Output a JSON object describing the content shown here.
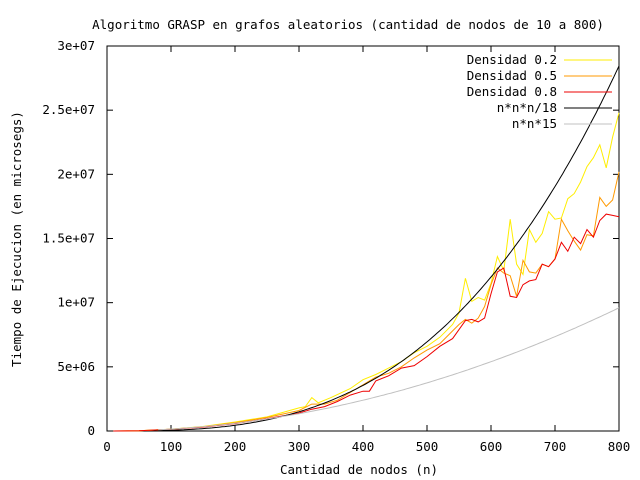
{
  "chart_data": {
    "type": "line",
    "title": "Algoritmo GRASP en grafos aleatorios (cantidad de nodos de 10 a 800)",
    "xlabel": "Cantidad de nodos (n)",
    "ylabel": "Tiempo de Ejecucion (en microsegs)",
    "xlim": [
      0,
      800
    ],
    "ylim": [
      0,
      30000000
    ],
    "xticks": [
      0,
      100,
      200,
      300,
      400,
      500,
      600,
      700,
      800
    ],
    "xtick_labels": [
      "0",
      "100",
      "200",
      "300",
      "400",
      "500",
      "600",
      "700",
      "800"
    ],
    "yticks": [
      0,
      5000000,
      10000000,
      15000000,
      20000000,
      25000000,
      30000000
    ],
    "ytick_labels": [
      "0",
      "5e+06",
      "1e+07",
      "1.5e+07",
      "2e+07",
      "2.5e+07",
      "3e+07"
    ],
    "grid": false,
    "legend_position": "top-right",
    "series": [
      {
        "name": "Densidad 0.2",
        "color": "#ffee00",
        "x": [
          10,
          50,
          100,
          150,
          200,
          250,
          300,
          310,
          320,
          330,
          350,
          380,
          400,
          420,
          440,
          460,
          480,
          500,
          520,
          540,
          550,
          560,
          570,
          580,
          590,
          600,
          610,
          620,
          630,
          640,
          650,
          660,
          670,
          680,
          690,
          700,
          710,
          720,
          730,
          740,
          750,
          760,
          770,
          780,
          790,
          800
        ],
        "y": [
          0,
          20000,
          150000,
          350000,
          700000,
          1100000,
          1800000,
          1900000,
          2600000,
          2200000,
          2600000,
          3300000,
          4000000,
          4400000,
          4900000,
          5400000,
          6100000,
          6600000,
          7300000,
          8300000,
          9200000,
          11900000,
          10100000,
          10400000,
          10200000,
          11500000,
          13600000,
          12500000,
          16500000,
          13000000,
          12200000,
          15700000,
          14700000,
          15400000,
          17100000,
          16500000,
          16600000,
          18100000,
          18500000,
          19400000,
          20600000,
          21300000,
          22300000,
          20500000,
          22900000,
          24800000
        ]
      },
      {
        "name": "Densidad 0.5",
        "color": "#ff9900",
        "x": [
          10,
          50,
          100,
          150,
          200,
          250,
          300,
          320,
          340,
          360,
          380,
          400,
          420,
          440,
          460,
          480,
          500,
          520,
          540,
          550,
          560,
          570,
          580,
          590,
          600,
          610,
          620,
          630,
          640,
          650,
          660,
          670,
          680,
          690,
          700,
          710,
          720,
          730,
          740,
          750,
          760,
          770,
          780,
          790,
          800
        ],
        "y": [
          0,
          20000,
          140000,
          330000,
          650000,
          1050000,
          1600000,
          2100000,
          2100000,
          2400000,
          3000000,
          3600000,
          4200000,
          4500000,
          5000000,
          5700000,
          6300000,
          6800000,
          7800000,
          8300000,
          8700000,
          8400000,
          8800000,
          9700000,
          11400000,
          12700000,
          12300000,
          12100000,
          10500000,
          13300000,
          12400000,
          12300000,
          13000000,
          12800000,
          13400000,
          16500000,
          15600000,
          14800000,
          14100000,
          15300000,
          15200000,
          18200000,
          17500000,
          18000000,
          20200000
        ]
      },
      {
        "name": "Densidad 0.8",
        "color": "#ee0000",
        "x": [
          10,
          50,
          100,
          150,
          200,
          250,
          300,
          320,
          340,
          360,
          380,
          400,
          410,
          420,
          440,
          460,
          480,
          500,
          520,
          540,
          560,
          570,
          580,
          590,
          600,
          610,
          620,
          630,
          640,
          650,
          660,
          670,
          680,
          690,
          700,
          710,
          720,
          730,
          740,
          750,
          760,
          770,
          780,
          790,
          800
        ],
        "y": [
          0,
          20000,
          130000,
          300000,
          580000,
          950000,
          1400000,
          1700000,
          1900000,
          2300000,
          2800000,
          3100000,
          3100000,
          3900000,
          4300000,
          4900000,
          5100000,
          5800000,
          6600000,
          7200000,
          8600000,
          8700000,
          8500000,
          8800000,
          10700000,
          12400000,
          12700000,
          10500000,
          10400000,
          11400000,
          11700000,
          11800000,
          13000000,
          12800000,
          13400000,
          14700000,
          14000000,
          15100000,
          14600000,
          15700000,
          15100000,
          16400000,
          16900000,
          16800000,
          16700000
        ]
      },
      {
        "name": "n*n*n/18",
        "color": "#000000",
        "formula": "n*n*n/18",
        "xrange": [
          80,
          800
        ]
      },
      {
        "name": "n*n*15",
        "color": "#c0c0c0",
        "formula": "n*n*15",
        "xrange": [
          80,
          800
        ]
      }
    ]
  }
}
